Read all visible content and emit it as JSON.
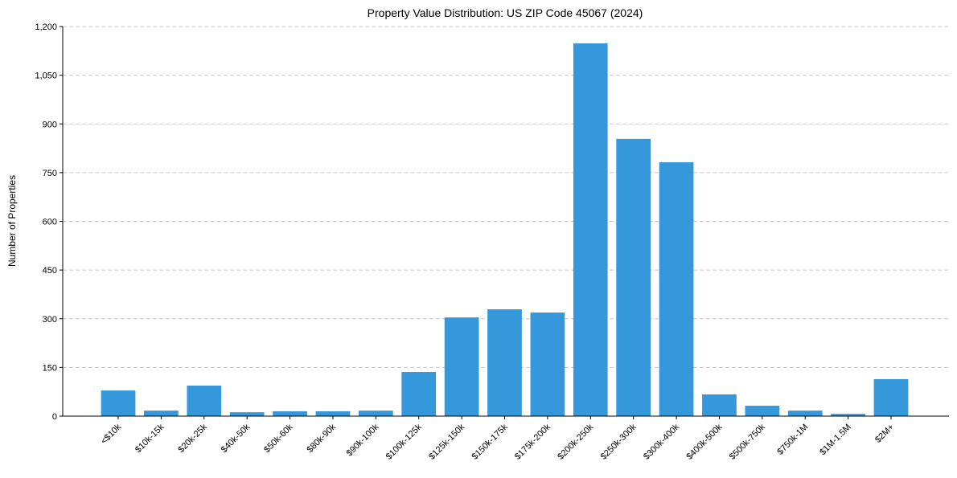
{
  "chart_data": {
    "type": "bar",
    "title": "Property Value Distribution: US ZIP Code 45067 (2024)",
    "xlabel": "",
    "ylabel": "Number of Properties",
    "ylim": [
      0,
      1200
    ],
    "yticks": [
      0,
      150,
      300,
      450,
      600,
      750,
      900,
      1050,
      1200
    ],
    "ytick_labels": [
      "0",
      "150",
      "300",
      "450",
      "600",
      "750",
      "900",
      "1,050",
      "1,200"
    ],
    "grid": "y-dashed",
    "bar_color": "#3498db",
    "categories": [
      "<$10k",
      "$10k-15k",
      "$20k-25k",
      "$40k-50k",
      "$50k-60k",
      "$80k-90k",
      "$90k-100k",
      "$100k-125k",
      "$125k-150k",
      "$150k-175k",
      "$175k-200k",
      "$200k-250k",
      "$250k-300k",
      "$300k-400k",
      "$400k-500k",
      "$500k-750k",
      "$750k-1M",
      "$1M-1.5M",
      "$2M+"
    ],
    "values": [
      79,
      17,
      94,
      12,
      15,
      15,
      17,
      136,
      304,
      329,
      319,
      1148,
      854,
      782,
      67,
      32,
      17,
      7,
      114
    ]
  }
}
